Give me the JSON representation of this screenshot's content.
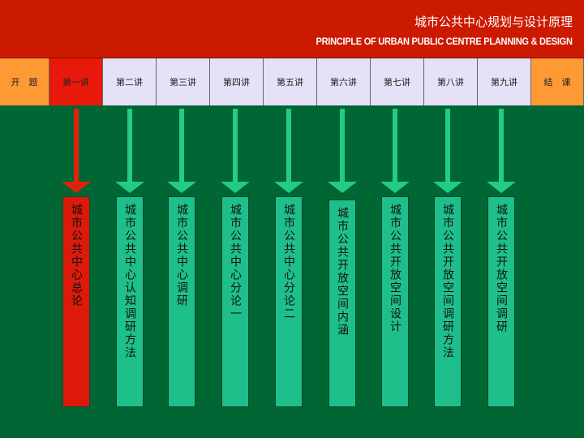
{
  "header": {
    "title_cn": "城市公共中心规划与设计原理",
    "title_en": "PRINCIPLE OF URBAN PUBLIC CENTRE PLANNING & DESIGN"
  },
  "tabs": [
    {
      "label": "开　题",
      "style": "orange"
    },
    {
      "label": "第一讲",
      "style": "active"
    },
    {
      "label": "第二讲",
      "style": "lav"
    },
    {
      "label": "第三讲",
      "style": "lav"
    },
    {
      "label": "第四讲",
      "style": "lav"
    },
    {
      "label": "第五讲",
      "style": "lav"
    },
    {
      "label": "第六讲",
      "style": "lav"
    },
    {
      "label": "第七讲",
      "style": "lav"
    },
    {
      "label": "第八讲",
      "style": "lav"
    },
    {
      "label": "第九讲",
      "style": "lav"
    },
    {
      "label": "结　课",
      "style": "orange"
    }
  ],
  "lectures": [
    {
      "text": "城市公共中心总论",
      "color": "#dd1a0a",
      "arrow": "#e0220c"
    },
    {
      "text": "城市公共中心认知调研方法",
      "color": "#1fbf8c",
      "arrow": "#22cc88"
    },
    {
      "text": "城市公共中心调研",
      "color": "#1fbf8c",
      "arrow": "#22cc88"
    },
    {
      "text": "城市公共中心分论一",
      "color": "#1fbf8c",
      "arrow": "#22cc88"
    },
    {
      "text": "城市公共中心分论二",
      "color": "#1fbf8c",
      "arrow": "#22cc88"
    },
    {
      "text": "城市公共开放空间内涵",
      "color": "#1fbf8c",
      "arrow": "#22cc88"
    },
    {
      "text": "城市公共开放空间设计",
      "color": "#1fbf8c",
      "arrow": "#22cc88"
    },
    {
      "text": "城市公共开放空间调研方法",
      "color": "#1fbf8c",
      "arrow": "#22cc88"
    },
    {
      "text": "城市公共开放空间调研",
      "color": "#1fbf8c",
      "arrow": "#22cc88"
    }
  ]
}
